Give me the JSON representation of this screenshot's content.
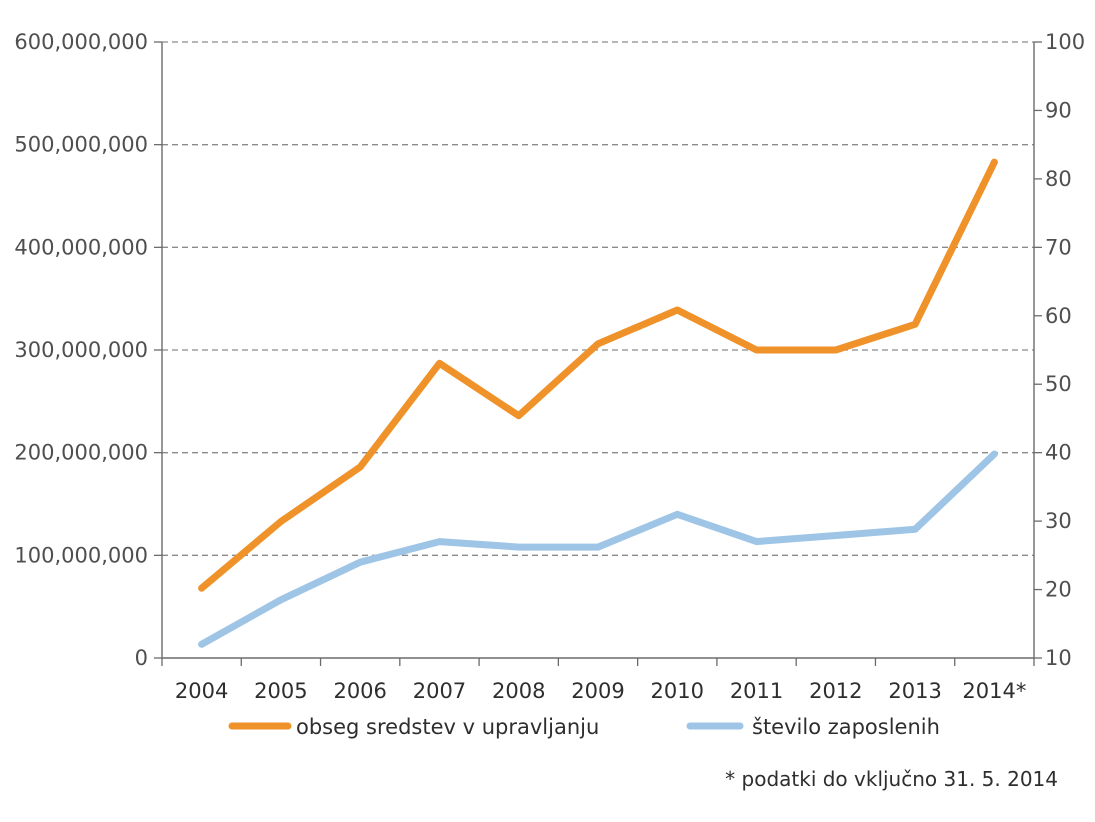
{
  "chart_data": {
    "type": "line",
    "categories": [
      "2004",
      "2005",
      "2006",
      "2007",
      "2008",
      "2009",
      "2010",
      "2011",
      "2012",
      "2013",
      "2014*"
    ],
    "y_left": {
      "ticks": [
        0,
        100000000,
        200000000,
        300000000,
        400000000,
        500000000,
        600000000
      ],
      "tick_labels": [
        "0",
        "100,000,000",
        "200,000,000",
        "300,000,000",
        "400,000,000",
        "500,000,000",
        "600,000,000"
      ],
      "ylim": [
        0,
        600000000
      ]
    },
    "y_right": {
      "ticks": [
        10,
        20,
        30,
        40,
        50,
        60,
        70,
        80,
        90,
        100
      ],
      "tick_labels": [
        "10",
        "20",
        "30",
        "40",
        "50",
        "60",
        "70",
        "80",
        "90",
        "100"
      ],
      "ylim": [
        10,
        100
      ]
    },
    "series": [
      {
        "name": "obseg sredstev v upravljanju",
        "axis": "left",
        "color": "#f0922a",
        "values": [
          68000000,
          133000000,
          186000000,
          287000000,
          236000000,
          306000000,
          339000000,
          300000000,
          300000000,
          325000000,
          483000000
        ]
      },
      {
        "name": "število zaposlenih",
        "axis": "right",
        "color": "#9ec4e6",
        "values": [
          12,
          18.5,
          24,
          27,
          26.2,
          26.2,
          31,
          27,
          27.9,
          28.8,
          39.8
        ]
      }
    ],
    "grid": true,
    "legend": "bottom",
    "footnote": "* podatki do vključno 31. 5. 2014"
  }
}
